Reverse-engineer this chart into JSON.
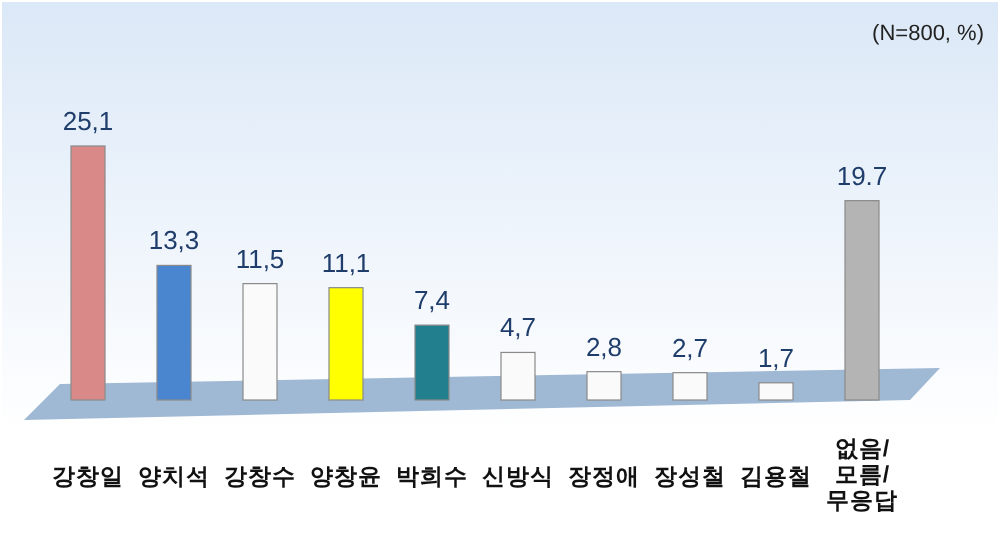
{
  "chart_data": {
    "type": "bar",
    "categories": [
      "강창일",
      "양치석",
      "강창수",
      "양창윤",
      "박희수",
      "신방식",
      "장정애",
      "장성철",
      "김용철",
      "없음/\n모름/\n무응답"
    ],
    "values": [
      25.1,
      13.3,
      11.5,
      11.1,
      7.4,
      4.7,
      2.8,
      2.7,
      1.7,
      19.7
    ],
    "colors": [
      "#d98a88",
      "#4a86d0",
      "#fafafa",
      "#ffff00",
      "#227f8e",
      "#fafafa",
      "#fafafa",
      "#fafafa",
      "#fafafa",
      "#b4b4b4"
    ],
    "value_labels": [
      "25,1",
      "13,3",
      "11,5",
      "11,1",
      "7,4",
      "4,7",
      "2,8",
      "2,7",
      "1,7",
      "19.7"
    ],
    "annotations": [
      "(N=800, %)"
    ]
  }
}
